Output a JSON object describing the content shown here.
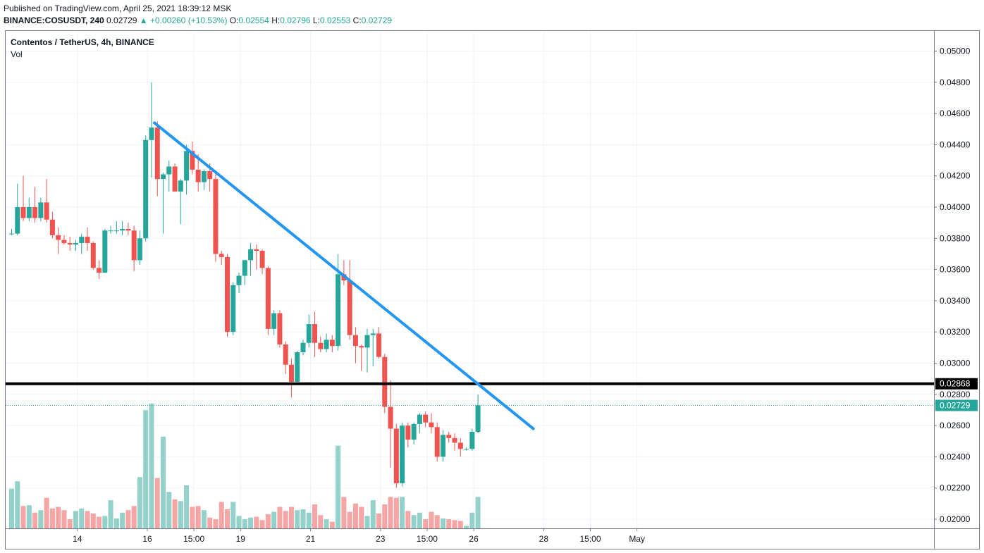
{
  "header": {
    "published": "Published on TradingView.com, April 25, 2021 18:39:12 MSK",
    "symbol": "BINANCE:COSUSDT, 240",
    "last": "0.02729",
    "change": "+0.00260 (+10.53%)",
    "o_label": "O:",
    "o_value": "0.02554",
    "h_label": "H:",
    "h_value": "0.02796",
    "l_label": "L:",
    "l_value": "0.02553",
    "c_label": "C:",
    "c_value": "0.02729"
  },
  "legend": {
    "title": "Contentos / TetherUS, 4h, BINANCE",
    "volume": "Vol"
  },
  "colors": {
    "up": "#26a69a",
    "down": "#ef5350",
    "up_volume": "#93d1ca",
    "down_volume": "#f5a5a4",
    "trendline": "#2196f3",
    "support": "#000000",
    "grid": "#f0f3fa"
  },
  "chart_data": {
    "type": "candlestick",
    "title": "Contentos / TetherUS, 4h, BINANCE",
    "interval": "4h",
    "price_axis": {
      "ylim": [
        0.0194,
        0.0512
      ],
      "ticks": [
        "0.05000",
        "0.04800",
        "0.04600",
        "0.04400",
        "0.04200",
        "0.04000",
        "0.03800",
        "0.03600",
        "0.03400",
        "0.03200",
        "0.03000",
        "0.02800",
        "0.02600",
        "0.02400",
        "0.02200",
        "0.02000"
      ],
      "tick_values": [
        0.05,
        0.048,
        0.046,
        0.044,
        0.042,
        0.04,
        0.038,
        0.036,
        0.034,
        0.032,
        0.03,
        0.028,
        0.026,
        0.024,
        0.022,
        0.02
      ]
    },
    "time_axis": {
      "labels": [
        "14",
        "16",
        "15:00",
        "19",
        "21",
        "23",
        "15:00",
        "26",
        "28",
        "15:00",
        "May"
      ],
      "label_bar_index": [
        12,
        24,
        32,
        40,
        52,
        64,
        72,
        80,
        92,
        100,
        108
      ]
    },
    "grid": true,
    "support_level": {
      "value": 0.02868,
      "label": "0.02868"
    },
    "last_price": {
      "value": 0.02729,
      "label": "0.02729"
    },
    "trendline": {
      "start": {
        "bar": 24.5,
        "price": 0.0454
      },
      "end": {
        "bar": 89.5,
        "price": 0.0258
      }
    },
    "candles": [
      {
        "o": 0.0383,
        "h": 0.0386,
        "l": 0.0382,
        "c": 0.0383
      },
      {
        "o": 0.0383,
        "h": 0.0415,
        "l": 0.0382,
        "c": 0.04
      },
      {
        "o": 0.04,
        "h": 0.042,
        "l": 0.0391,
        "c": 0.0393
      },
      {
        "o": 0.0393,
        "h": 0.0406,
        "l": 0.0391,
        "c": 0.04
      },
      {
        "o": 0.04,
        "h": 0.0413,
        "l": 0.039,
        "c": 0.0393
      },
      {
        "o": 0.0393,
        "h": 0.0406,
        "l": 0.0391,
        "c": 0.0403
      },
      {
        "o": 0.0403,
        "h": 0.0418,
        "l": 0.039,
        "c": 0.0392
      },
      {
        "o": 0.0392,
        "h": 0.0397,
        "l": 0.038,
        "c": 0.0382
      },
      {
        "o": 0.0382,
        "h": 0.0387,
        "l": 0.037,
        "c": 0.0379
      },
      {
        "o": 0.0379,
        "h": 0.0382,
        "l": 0.0376,
        "c": 0.0377
      },
      {
        "o": 0.0377,
        "h": 0.0381,
        "l": 0.0372,
        "c": 0.0376
      },
      {
        "o": 0.0376,
        "h": 0.0379,
        "l": 0.0372,
        "c": 0.0377
      },
      {
        "o": 0.0377,
        "h": 0.0383,
        "l": 0.037,
        "c": 0.0381
      },
      {
        "o": 0.0381,
        "h": 0.0387,
        "l": 0.0372,
        "c": 0.0377
      },
      {
        "o": 0.0377,
        "h": 0.0378,
        "l": 0.036,
        "c": 0.0361
      },
      {
        "o": 0.0361,
        "h": 0.0366,
        "l": 0.0354,
        "c": 0.0358
      },
      {
        "o": 0.0358,
        "h": 0.0386,
        "l": 0.0358,
        "c": 0.0385
      },
      {
        "o": 0.0385,
        "h": 0.0388,
        "l": 0.0383,
        "c": 0.0385
      },
      {
        "o": 0.0385,
        "h": 0.0391,
        "l": 0.0383,
        "c": 0.0385
      },
      {
        "o": 0.0385,
        "h": 0.0391,
        "l": 0.0382,
        "c": 0.0386
      },
      {
        "o": 0.0386,
        "h": 0.039,
        "l": 0.0382,
        "c": 0.0385
      },
      {
        "o": 0.0385,
        "h": 0.0388,
        "l": 0.0359,
        "c": 0.0366
      },
      {
        "o": 0.0366,
        "h": 0.0385,
        "l": 0.0363,
        "c": 0.038
      },
      {
        "o": 0.038,
        "h": 0.0446,
        "l": 0.0378,
        "c": 0.0443
      },
      {
        "o": 0.0443,
        "h": 0.048,
        "l": 0.0419,
        "c": 0.0451
      },
      {
        "o": 0.0451,
        "h": 0.0455,
        "l": 0.0407,
        "c": 0.0418
      },
      {
        "o": 0.0418,
        "h": 0.0422,
        "l": 0.0383,
        "c": 0.0421
      },
      {
        "o": 0.0421,
        "h": 0.043,
        "l": 0.041,
        "c": 0.0426
      },
      {
        "o": 0.0426,
        "h": 0.0428,
        "l": 0.041,
        "c": 0.041
      },
      {
        "o": 0.041,
        "h": 0.0418,
        "l": 0.0389,
        "c": 0.0417
      },
      {
        "o": 0.0417,
        "h": 0.044,
        "l": 0.0408,
        "c": 0.0436
      },
      {
        "o": 0.0436,
        "h": 0.0442,
        "l": 0.0421,
        "c": 0.0424
      },
      {
        "o": 0.0424,
        "h": 0.0434,
        "l": 0.041,
        "c": 0.0416
      },
      {
        "o": 0.0416,
        "h": 0.0424,
        "l": 0.0411,
        "c": 0.0423
      },
      {
        "o": 0.0423,
        "h": 0.0428,
        "l": 0.041,
        "c": 0.0418
      },
      {
        "o": 0.0418,
        "h": 0.0422,
        "l": 0.0365,
        "c": 0.037
      },
      {
        "o": 0.037,
        "h": 0.0372,
        "l": 0.0363,
        "c": 0.0368
      },
      {
        "o": 0.0368,
        "h": 0.037,
        "l": 0.0317,
        "c": 0.032
      },
      {
        "o": 0.032,
        "h": 0.0352,
        "l": 0.0318,
        "c": 0.035
      },
      {
        "o": 0.035,
        "h": 0.0358,
        "l": 0.0345,
        "c": 0.0356
      },
      {
        "o": 0.0356,
        "h": 0.0366,
        "l": 0.035,
        "c": 0.0366
      },
      {
        "o": 0.0366,
        "h": 0.0377,
        "l": 0.0356,
        "c": 0.0373
      },
      {
        "o": 0.0373,
        "h": 0.0376,
        "l": 0.036,
        "c": 0.0372
      },
      {
        "o": 0.0372,
        "h": 0.0373,
        "l": 0.0357,
        "c": 0.0361
      },
      {
        "o": 0.0361,
        "h": 0.0362,
        "l": 0.0318,
        "c": 0.0322
      },
      {
        "o": 0.0322,
        "h": 0.0334,
        "l": 0.0318,
        "c": 0.0332
      },
      {
        "o": 0.0332,
        "h": 0.0334,
        "l": 0.031,
        "c": 0.0312
      },
      {
        "o": 0.0312,
        "h": 0.0314,
        "l": 0.0293,
        "c": 0.0299
      },
      {
        "o": 0.0299,
        "h": 0.0303,
        "l": 0.0278,
        "c": 0.0288
      },
      {
        "o": 0.0288,
        "h": 0.0308,
        "l": 0.0288,
        "c": 0.0307
      },
      {
        "o": 0.0307,
        "h": 0.0315,
        "l": 0.0305,
        "c": 0.0313
      },
      {
        "o": 0.0313,
        "h": 0.0331,
        "l": 0.031,
        "c": 0.0325
      },
      {
        "o": 0.0325,
        "h": 0.0333,
        "l": 0.0304,
        "c": 0.0313
      },
      {
        "o": 0.0313,
        "h": 0.0317,
        "l": 0.0307,
        "c": 0.0309
      },
      {
        "o": 0.0309,
        "h": 0.0319,
        "l": 0.0307,
        "c": 0.0315
      },
      {
        "o": 0.0315,
        "h": 0.0318,
        "l": 0.0307,
        "c": 0.0311
      },
      {
        "o": 0.0311,
        "h": 0.037,
        "l": 0.0308,
        "c": 0.0357
      },
      {
        "o": 0.0357,
        "h": 0.0366,
        "l": 0.035,
        "c": 0.0353
      },
      {
        "o": 0.0353,
        "h": 0.0366,
        "l": 0.0315,
        "c": 0.0318
      },
      {
        "o": 0.0318,
        "h": 0.0323,
        "l": 0.03,
        "c": 0.0311
      },
      {
        "o": 0.0311,
        "h": 0.0312,
        "l": 0.0295,
        "c": 0.031
      },
      {
        "o": 0.031,
        "h": 0.0322,
        "l": 0.0294,
        "c": 0.0318
      },
      {
        "o": 0.0318,
        "h": 0.0322,
        "l": 0.0298,
        "c": 0.0319
      },
      {
        "o": 0.0319,
        "h": 0.0323,
        "l": 0.0303,
        "c": 0.0304
      },
      {
        "o": 0.0304,
        "h": 0.0306,
        "l": 0.0268,
        "c": 0.0272
      },
      {
        "o": 0.0272,
        "h": 0.0289,
        "l": 0.0233,
        "c": 0.0258
      },
      {
        "o": 0.0258,
        "h": 0.0261,
        "l": 0.022,
        "c": 0.0223
      },
      {
        "o": 0.0223,
        "h": 0.0262,
        "l": 0.0221,
        "c": 0.026
      },
      {
        "o": 0.026,
        "h": 0.0262,
        "l": 0.0246,
        "c": 0.0251
      },
      {
        "o": 0.0251,
        "h": 0.0262,
        "l": 0.0248,
        "c": 0.0261
      },
      {
        "o": 0.0261,
        "h": 0.0268,
        "l": 0.0255,
        "c": 0.0267
      },
      {
        "o": 0.0267,
        "h": 0.0269,
        "l": 0.0259,
        "c": 0.0262
      },
      {
        "o": 0.0262,
        "h": 0.0268,
        "l": 0.0255,
        "c": 0.0259
      },
      {
        "o": 0.0259,
        "h": 0.0262,
        "l": 0.0237,
        "c": 0.024
      },
      {
        "o": 0.024,
        "h": 0.0257,
        "l": 0.0237,
        "c": 0.0254
      },
      {
        "o": 0.0254,
        "h": 0.0256,
        "l": 0.0249,
        "c": 0.0252
      },
      {
        "o": 0.0252,
        "h": 0.0255,
        "l": 0.0244,
        "c": 0.0249
      },
      {
        "o": 0.0249,
        "h": 0.0252,
        "l": 0.024,
        "c": 0.0245
      },
      {
        "o": 0.0245,
        "h": 0.0246,
        "l": 0.0244,
        "c": 0.0245
      },
      {
        "o": 0.0245,
        "h": 0.0258,
        "l": 0.0244,
        "c": 0.0256
      },
      {
        "o": 0.0256,
        "h": 0.028,
        "l": 0.0255,
        "c": 0.0273
      }
    ],
    "volume": [
      0.48,
      0.57,
      0.27,
      0.28,
      0.19,
      0.22,
      0.37,
      0.24,
      0.26,
      0.22,
      0.11,
      0.21,
      0.24,
      0.21,
      0.18,
      0.14,
      0.15,
      0.34,
      0.12,
      0.19,
      0.22,
      0.27,
      0.62,
      1.43,
      1.51,
      0.61,
      1.11,
      0.44,
      0.35,
      0.33,
      0.52,
      0.26,
      0.27,
      0.22,
      0.13,
      0.11,
      0.32,
      0.23,
      0.32,
      0.15,
      0.11,
      0.13,
      0.14,
      0.1,
      0.17,
      0.2,
      0.26,
      0.21,
      0.26,
      0.22,
      0.23,
      0.19,
      0.29,
      0.16,
      0.11,
      0.08,
      1.0,
      0.38,
      0.2,
      0.3,
      0.26,
      0.15,
      0.34,
      0.18,
      0.29,
      0.38,
      0.37,
      0.38,
      0.21,
      0.16,
      0.19,
      0.11,
      0.2,
      0.16,
      0.12,
      0.11,
      0.1,
      0.09,
      0.03,
      0.19,
      0.38
    ]
  }
}
